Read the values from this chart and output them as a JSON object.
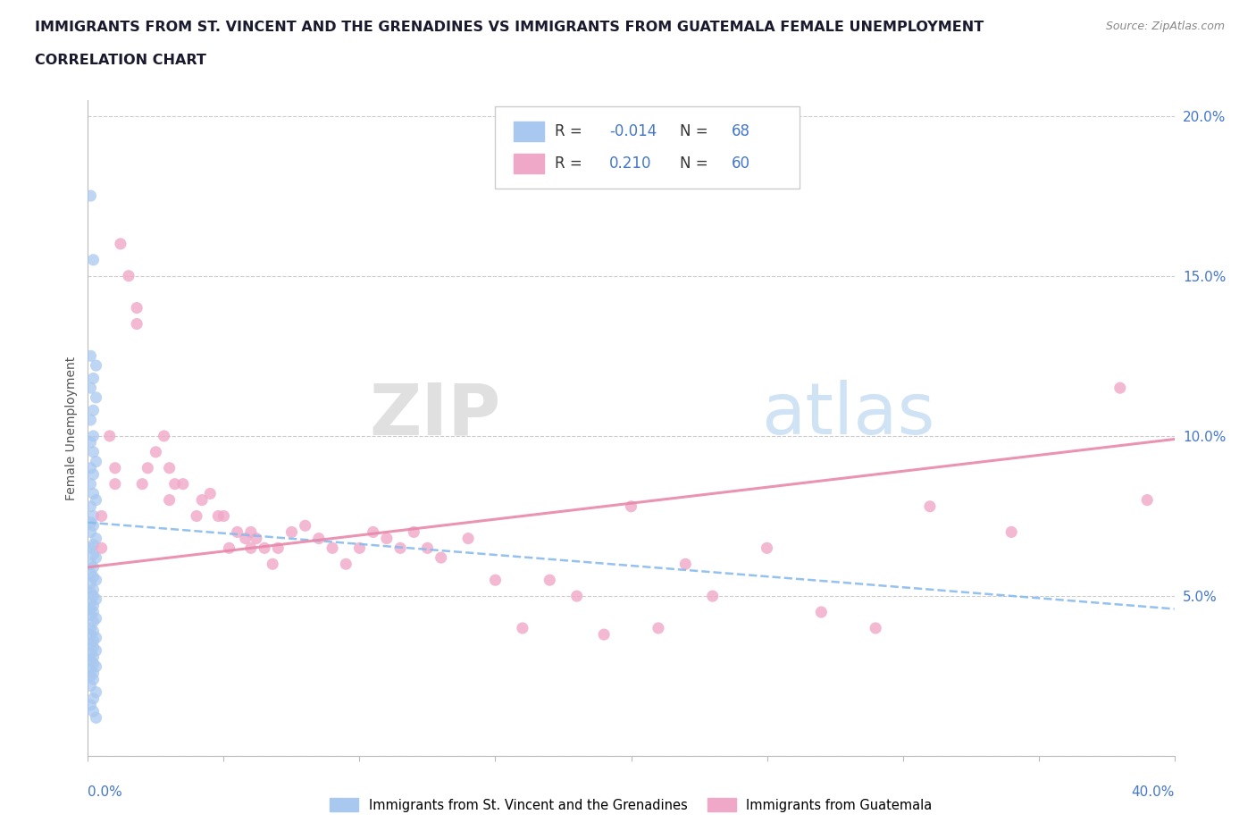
{
  "title_line1": "IMMIGRANTS FROM ST. VINCENT AND THE GRENADINES VS IMMIGRANTS FROM GUATEMALA FEMALE UNEMPLOYMENT",
  "title_line2": "CORRELATION CHART",
  "source": "Source: ZipAtlas.com",
  "ylabel": "Female Unemployment",
  "xlim": [
    0.0,
    0.4
  ],
  "ylim": [
    0.0,
    0.205
  ],
  "series1_color": "#a8c8f0",
  "series2_color": "#f0a8c8",
  "trend1_color": "#88bbee",
  "trend2_color": "#e888aa",
  "series1_R": -0.014,
  "series2_R": 0.21,
  "watermark_ZIP": "ZIP",
  "watermark_atlas": "atlas",
  "watermark_color_ZIP": "#cccccc",
  "watermark_color_atlas": "#aaccee",
  "series1_x": [
    0.001,
    0.002,
    0.001,
    0.003,
    0.002,
    0.001,
    0.003,
    0.002,
    0.001,
    0.002,
    0.001,
    0.002,
    0.003,
    0.001,
    0.002,
    0.001,
    0.002,
    0.003,
    0.001,
    0.002,
    0.001,
    0.002,
    0.001,
    0.003,
    0.002,
    0.001,
    0.002,
    0.003,
    0.001,
    0.002,
    0.001,
    0.002,
    0.003,
    0.001,
    0.002,
    0.001,
    0.002,
    0.003,
    0.001,
    0.002,
    0.001,
    0.002,
    0.001,
    0.003,
    0.002,
    0.001,
    0.002,
    0.001,
    0.003,
    0.002,
    0.001,
    0.002,
    0.003,
    0.001,
    0.002,
    0.001,
    0.002,
    0.003,
    0.001,
    0.002,
    0.001,
    0.002,
    0.001,
    0.003,
    0.002,
    0.001,
    0.002,
    0.003
  ],
  "series1_y": [
    0.175,
    0.155,
    0.125,
    0.122,
    0.118,
    0.115,
    0.112,
    0.108,
    0.105,
    0.1,
    0.098,
    0.095,
    0.092,
    0.09,
    0.088,
    0.085,
    0.082,
    0.08,
    0.078,
    0.075,
    0.073,
    0.072,
    0.07,
    0.068,
    0.066,
    0.065,
    0.063,
    0.062,
    0.06,
    0.059,
    0.057,
    0.056,
    0.055,
    0.054,
    0.052,
    0.051,
    0.05,
    0.049,
    0.048,
    0.047,
    0.046,
    0.045,
    0.044,
    0.043,
    0.042,
    0.04,
    0.039,
    0.038,
    0.037,
    0.036,
    0.035,
    0.034,
    0.033,
    0.032,
    0.031,
    0.03,
    0.029,
    0.028,
    0.027,
    0.026,
    0.025,
    0.024,
    0.022,
    0.02,
    0.018,
    0.016,
    0.014,
    0.012
  ],
  "series2_x": [
    0.005,
    0.005,
    0.008,
    0.01,
    0.01,
    0.012,
    0.015,
    0.018,
    0.018,
    0.02,
    0.022,
    0.025,
    0.028,
    0.03,
    0.03,
    0.032,
    0.035,
    0.04,
    0.042,
    0.045,
    0.048,
    0.05,
    0.052,
    0.055,
    0.058,
    0.06,
    0.06,
    0.062,
    0.065,
    0.068,
    0.07,
    0.075,
    0.08,
    0.085,
    0.09,
    0.095,
    0.1,
    0.105,
    0.11,
    0.115,
    0.12,
    0.125,
    0.13,
    0.14,
    0.15,
    0.16,
    0.17,
    0.18,
    0.19,
    0.2,
    0.21,
    0.22,
    0.23,
    0.25,
    0.27,
    0.29,
    0.31,
    0.34,
    0.38,
    0.39
  ],
  "series2_y": [
    0.065,
    0.075,
    0.1,
    0.085,
    0.09,
    0.16,
    0.15,
    0.14,
    0.135,
    0.085,
    0.09,
    0.095,
    0.1,
    0.09,
    0.08,
    0.085,
    0.085,
    0.075,
    0.08,
    0.082,
    0.075,
    0.075,
    0.065,
    0.07,
    0.068,
    0.07,
    0.065,
    0.068,
    0.065,
    0.06,
    0.065,
    0.07,
    0.072,
    0.068,
    0.065,
    0.06,
    0.065,
    0.07,
    0.068,
    0.065,
    0.07,
    0.065,
    0.062,
    0.068,
    0.055,
    0.04,
    0.055,
    0.05,
    0.038,
    0.078,
    0.04,
    0.06,
    0.05,
    0.065,
    0.045,
    0.04,
    0.078,
    0.07,
    0.115,
    0.08
  ]
}
